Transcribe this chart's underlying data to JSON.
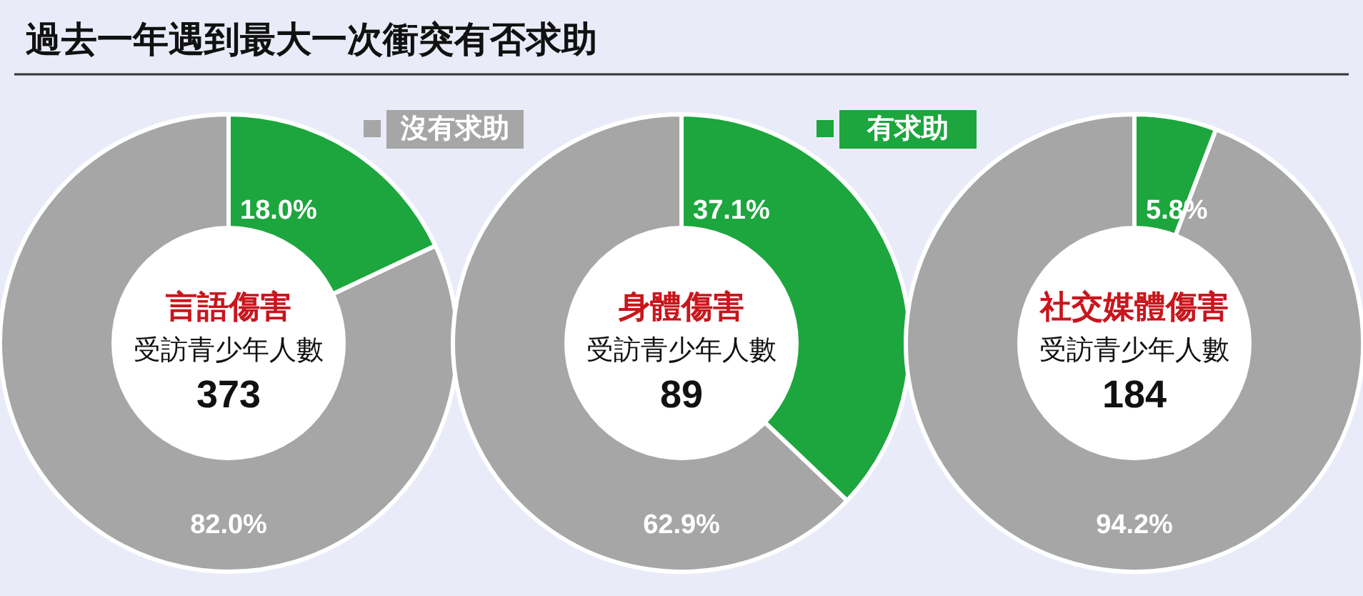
{
  "chart_data": [
    {
      "type": "other",
      "title": "過去一年遇到最大一次衝突有否求助"
    },
    {
      "type": "donut",
      "title": "言語傷害",
      "annotations": [
        "受訪青少年人數",
        "373"
      ],
      "categories": [
        "沒有求助",
        "有求助"
      ],
      "values": [
        82.0,
        18.0
      ],
      "value_labels": [
        "82.0%",
        "18.0%"
      ],
      "colors": [
        "#a6a6a6",
        "#1ca63d"
      ],
      "legend": "top"
    },
    {
      "type": "donut",
      "title": "身體傷害",
      "annotations": [
        "受訪青少年人數",
        "89"
      ],
      "categories": [
        null,
        null
      ],
      "values": [
        62.9,
        37.1
      ],
      "value_labels": [
        "62.9%",
        "37.1%"
      ],
      "colors": [
        "#a6a6a6",
        "#1ca63d"
      ]
    },
    {
      "type": "donut",
      "title": "社交媒體傷害",
      "annotations": [
        "受訪青少年人數",
        "184"
      ],
      "categories": [
        null,
        null
      ],
      "values": [
        94.2,
        5.8
      ],
      "value_labels": [
        "94.2%",
        "5.8%"
      ],
      "colors": [
        "#a6a6a6",
        "#1ca63d"
      ]
    }
  ]
}
